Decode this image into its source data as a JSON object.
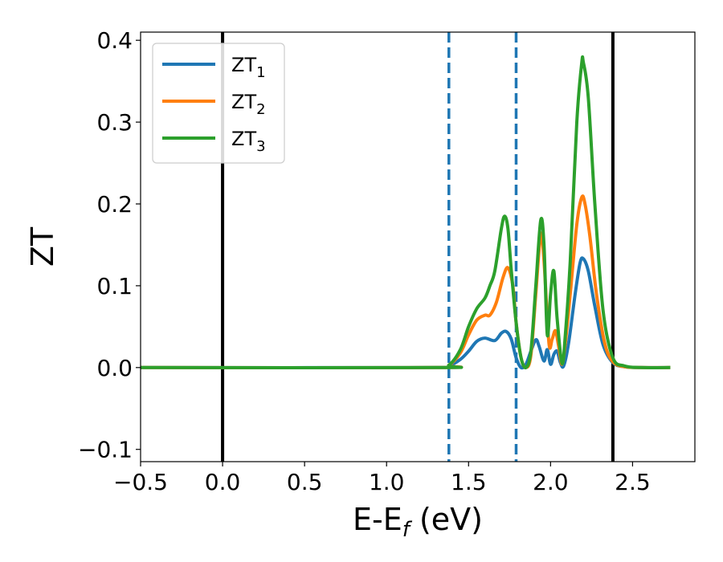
{
  "chart_data": {
    "type": "line",
    "xlabel": "E-E",
    "xlabel_sub": "f",
    "xlabel_unit": " (eV)",
    "ylabel": "ZT",
    "xlim": [
      -0.5,
      2.88
    ],
    "ylim": [
      -0.115,
      0.41
    ],
    "x_ticks": [
      -0.5,
      0.0,
      0.5,
      1.0,
      1.5,
      2.0,
      2.5
    ],
    "x_tick_labels": [
      "−0.5",
      "0.0",
      "0.5",
      "1.0",
      "1.5",
      "2.0",
      "2.5"
    ],
    "y_ticks": [
      -0.1,
      0.0,
      0.1,
      0.2,
      0.3,
      0.4
    ],
    "y_tick_labels": [
      "−0.1",
      "0.0",
      "0.1",
      "0.2",
      "0.3",
      "0.4"
    ],
    "grid": false,
    "legend_position": "top-left",
    "vertical_lines": [
      {
        "x": 0.0,
        "style": "solid",
        "color": "#000000"
      },
      {
        "x": 2.38,
        "style": "solid",
        "color": "#000000"
      },
      {
        "x": 1.38,
        "style": "dashed",
        "color": "#1f77b4"
      },
      {
        "x": 1.79,
        "style": "dashed",
        "color": "#1f77b4"
      }
    ],
    "series": [
      {
        "name": "ZT",
        "subscript": "1",
        "color": "#1f77b4",
        "x": [
          -0.5,
          1.3,
          1.38,
          1.45,
          1.5,
          1.55,
          1.6,
          1.66,
          1.7,
          1.73,
          1.76,
          1.79,
          1.82,
          1.85,
          1.88,
          1.91,
          1.93,
          1.96,
          1.98,
          2.0,
          2.02,
          2.04,
          2.06,
          2.08,
          2.11,
          2.15,
          2.18,
          2.2,
          2.23,
          2.27,
          2.32,
          2.38,
          2.45,
          2.55,
          2.73
        ],
        "y": [
          0.0,
          0.0,
          0.002,
          0.01,
          0.02,
          0.032,
          0.036,
          0.033,
          0.042,
          0.044,
          0.035,
          0.012,
          0.0,
          0.004,
          0.02,
          0.034,
          0.026,
          0.008,
          0.022,
          0.004,
          0.016,
          0.02,
          0.006,
          0.002,
          0.03,
          0.09,
          0.128,
          0.133,
          0.118,
          0.075,
          0.028,
          0.006,
          0.001,
          0.0,
          0.0
        ]
      },
      {
        "name": "ZT",
        "subscript": "2",
        "color": "#ff7f0e",
        "x": [
          -0.5,
          1.3,
          1.38,
          1.45,
          1.5,
          1.55,
          1.6,
          1.63,
          1.67,
          1.71,
          1.74,
          1.77,
          1.79,
          1.82,
          1.85,
          1.88,
          1.91,
          1.94,
          1.96,
          1.99,
          2.01,
          2.03,
          2.05,
          2.07,
          2.09,
          2.12,
          2.16,
          2.19,
          2.21,
          2.24,
          2.28,
          2.33,
          2.38,
          2.45,
          2.55,
          2.73
        ],
        "y": [
          0.0,
          0.0,
          0.003,
          0.018,
          0.04,
          0.058,
          0.064,
          0.064,
          0.08,
          0.11,
          0.122,
          0.1,
          0.055,
          0.012,
          0.0,
          0.015,
          0.09,
          0.163,
          0.13,
          0.03,
          0.035,
          0.045,
          0.025,
          0.004,
          0.03,
          0.09,
          0.175,
          0.208,
          0.2,
          0.16,
          0.09,
          0.03,
          0.007,
          0.001,
          0.0,
          0.0
        ]
      },
      {
        "name": "ZT",
        "subscript": "3",
        "color": "#2ca02c",
        "x": [
          -0.5,
          1.3,
          1.38,
          1.45,
          1.5,
          1.55,
          1.6,
          1.63,
          1.66,
          1.7,
          1.72,
          1.74,
          1.76,
          1.79,
          1.82,
          1.85,
          1.88,
          1.91,
          1.94,
          1.96,
          1.98,
          2.0,
          2.02,
          2.04,
          2.07,
          2.09,
          2.12,
          2.16,
          2.19,
          2.2,
          2.23,
          2.27,
          2.32,
          2.38,
          2.45,
          2.55,
          2.73
        ],
        "y": [
          0.0,
          0.0,
          0.003,
          0.022,
          0.05,
          0.072,
          0.085,
          0.1,
          0.118,
          0.17,
          0.185,
          0.17,
          0.12,
          0.055,
          0.012,
          0.0,
          0.02,
          0.1,
          0.18,
          0.15,
          0.04,
          0.09,
          0.118,
          0.06,
          0.005,
          0.04,
          0.13,
          0.3,
          0.372,
          0.373,
          0.33,
          0.2,
          0.07,
          0.012,
          0.002,
          0.0,
          0.0
        ]
      }
    ]
  }
}
